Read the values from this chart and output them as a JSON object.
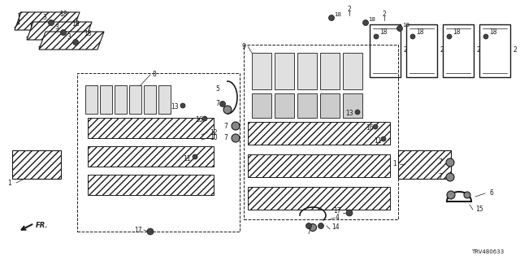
{
  "bg_color": "#ffffff",
  "diagram_color": "#1a1a1a",
  "part_number": "TRV480633",
  "fig_width": 6.4,
  "fig_height": 3.2,
  "dpi": 100
}
